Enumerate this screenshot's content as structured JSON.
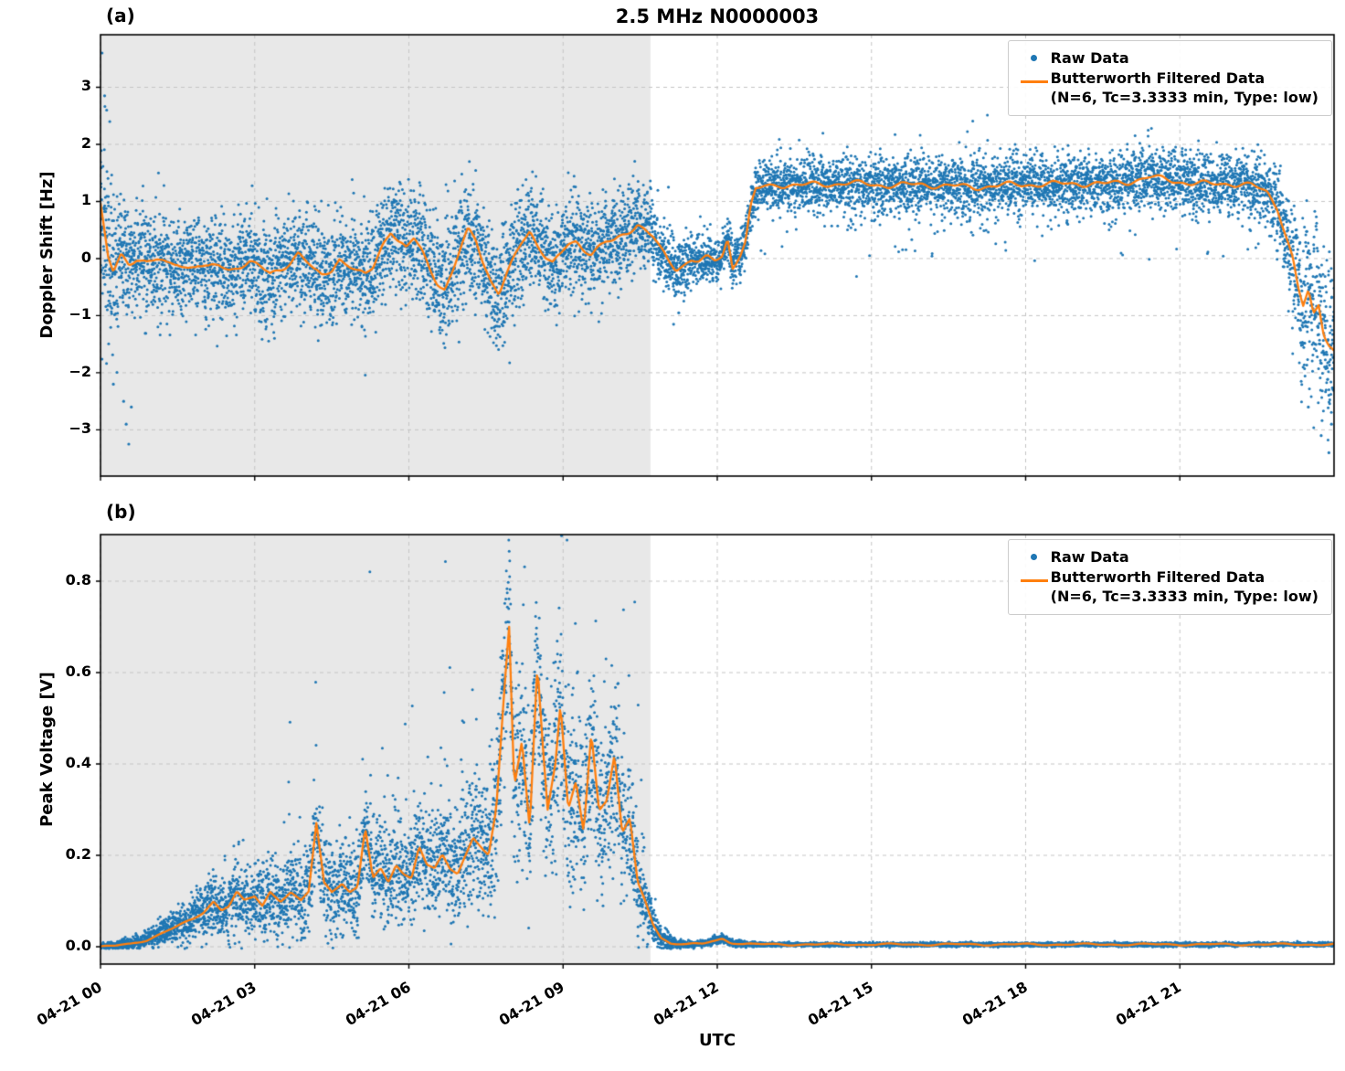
{
  "figure": {
    "title": "2.5 MHz N0000003",
    "xlabel": "UTC",
    "panel_a_label": "(a)",
    "panel_b_label": "(b)",
    "ylabel_a": "Doppler Shift [Hz]",
    "ylabel_b": "Peak Voltage [V]"
  },
  "legend": {
    "raw_label": "Raw Data",
    "filtered_label": "Butterworth Filtered Data",
    "filtered_params": "(N=6, Tc=3.3333 min, Type: low)"
  },
  "colors": {
    "raw": "#1f77b4",
    "filtered": "#ff7f0e",
    "shade": "#e8e8e8",
    "grid": "#c4c4c4",
    "spine": "#000000"
  },
  "chart_data": [
    {
      "panel": "a",
      "type": "scatter",
      "ylabel": "Doppler Shift [Hz]",
      "xlim": [
        0,
        24
      ],
      "ylim": [
        -3.81,
        3.92
      ],
      "xticks": [
        0,
        3,
        6,
        9,
        12,
        15,
        18,
        21
      ],
      "yticks": [
        -3,
        -2,
        -1,
        0,
        1,
        2,
        3
      ],
      "ytick_labels": [
        "−3",
        "−2",
        "−1",
        "0",
        "1",
        "2",
        "3"
      ],
      "shade_hours": [
        0,
        10.7
      ],
      "grid": "dashed",
      "legend_position": "upper right",
      "seed": 1337,
      "n_points": 9500,
      "line_width": 2.3,
      "line_wobble": [
        0.04,
        6.5
      ],
      "filtered_line": [
        [
          0,
          0.95
        ],
        [
          0.07,
          0.5
        ],
        [
          0.15,
          0
        ],
        [
          0.25,
          -0.25
        ],
        [
          0.4,
          0.05
        ],
        [
          0.55,
          -0.1
        ],
        [
          0.7,
          0.02
        ],
        [
          0.9,
          -0.05
        ],
        [
          1.1,
          -0.02
        ],
        [
          1.3,
          -0.12
        ],
        [
          1.5,
          -0.08
        ],
        [
          1.7,
          -0.15
        ],
        [
          1.9,
          -0.1
        ],
        [
          2.1,
          -0.18
        ],
        [
          2.3,
          -0.12
        ],
        [
          2.5,
          -0.2
        ],
        [
          2.7,
          -0.12
        ],
        [
          2.9,
          -0.06
        ],
        [
          3.1,
          -0.15
        ],
        [
          3.3,
          -0.28
        ],
        [
          3.5,
          -0.18
        ],
        [
          3.7,
          -0.05
        ],
        [
          3.85,
          0.1
        ],
        [
          4,
          -0.05
        ],
        [
          4.15,
          -0.22
        ],
        [
          4.3,
          -0.3
        ],
        [
          4.5,
          -0.18
        ],
        [
          4.65,
          0
        ],
        [
          4.8,
          -0.1
        ],
        [
          5,
          -0.25
        ],
        [
          5.15,
          -0.3
        ],
        [
          5.3,
          -0.15
        ],
        [
          5.5,
          0.28
        ],
        [
          5.65,
          0.5
        ],
        [
          5.8,
          0.3
        ],
        [
          5.95,
          0.15
        ],
        [
          6.1,
          0.35
        ],
        [
          6.25,
          0.15
        ],
        [
          6.4,
          -0.15
        ],
        [
          6.55,
          -0.4
        ],
        [
          6.7,
          -0.55
        ],
        [
          6.85,
          -0.25
        ],
        [
          7,
          0.15
        ],
        [
          7.15,
          0.5
        ],
        [
          7.3,
          0.35
        ],
        [
          7.45,
          -0.05
        ],
        [
          7.6,
          -0.4
        ],
        [
          7.75,
          -0.62
        ],
        [
          7.9,
          -0.3
        ],
        [
          8.05,
          0
        ],
        [
          8.2,
          0.3
        ],
        [
          8.35,
          0.5
        ],
        [
          8.5,
          0.25
        ],
        [
          8.65,
          0.05
        ],
        [
          8.8,
          -0.1
        ],
        [
          8.95,
          0.05
        ],
        [
          9.1,
          0.25
        ],
        [
          9.25,
          0.3
        ],
        [
          9.4,
          0.18
        ],
        [
          9.55,
          0.1
        ],
        [
          9.7,
          0.2
        ],
        [
          9.85,
          0.28
        ],
        [
          10,
          0.3
        ],
        [
          10.15,
          0.4
        ],
        [
          10.3,
          0.5
        ],
        [
          10.45,
          0.62
        ],
        [
          10.6,
          0.5
        ],
        [
          10.75,
          0.38
        ],
        [
          10.9,
          0.15
        ],
        [
          11.05,
          -0.05
        ],
        [
          11.2,
          -0.18
        ],
        [
          11.35,
          -0.1
        ],
        [
          11.5,
          0
        ],
        [
          11.65,
          -0.05
        ],
        [
          11.8,
          0
        ],
        [
          11.95,
          -0.05
        ],
        [
          12.1,
          0.05
        ],
        [
          12.2,
          0.35
        ],
        [
          12.3,
          -0.15
        ],
        [
          12.45,
          0.1
        ],
        [
          12.55,
          0.3
        ],
        [
          12.65,
          0.9
        ],
        [
          12.75,
          1.2
        ],
        [
          12.9,
          1.25
        ],
        [
          13.2,
          1.3
        ],
        [
          13.6,
          1.28
        ],
        [
          14,
          1.3
        ],
        [
          14.5,
          1.32
        ],
        [
          15,
          1.3
        ],
        [
          15.5,
          1.28
        ],
        [
          16,
          1.3
        ],
        [
          16.5,
          1.27
        ],
        [
          17,
          1.25
        ],
        [
          17.5,
          1.28
        ],
        [
          18,
          1.3
        ],
        [
          18.5,
          1.3
        ],
        [
          19,
          1.32
        ],
        [
          19.5,
          1.3
        ],
        [
          20,
          1.35
        ],
        [
          20.4,
          1.42
        ],
        [
          20.8,
          1.38
        ],
        [
          21.2,
          1.32
        ],
        [
          21.6,
          1.3
        ],
        [
          22,
          1.32
        ],
        [
          22.4,
          1.28
        ],
        [
          22.7,
          1.15
        ],
        [
          22.9,
          0.9
        ],
        [
          23.05,
          0.45
        ],
        [
          23.2,
          0
        ],
        [
          23.3,
          -0.5
        ],
        [
          23.4,
          -0.85
        ],
        [
          23.5,
          -0.6
        ],
        [
          23.6,
          -1
        ],
        [
          23.7,
          -0.8
        ],
        [
          23.8,
          -1.3
        ],
        [
          23.9,
          -1.5
        ],
        [
          24,
          -1.6
        ]
      ],
      "noise_profile": [
        [
          0,
          1.1
        ],
        [
          0.2,
          0.8
        ],
        [
          0.4,
          0.55
        ],
        [
          0.7,
          0.45
        ],
        [
          1.5,
          0.42
        ],
        [
          3,
          0.45
        ],
        [
          5,
          0.45
        ],
        [
          6,
          0.5
        ],
        [
          7,
          0.55
        ],
        [
          8,
          0.5
        ],
        [
          9,
          0.45
        ],
        [
          10,
          0.4
        ],
        [
          10.6,
          0.35
        ],
        [
          11,
          0.3
        ],
        [
          11.6,
          0.22
        ],
        [
          12,
          0.18
        ],
        [
          12.4,
          0.25
        ],
        [
          12.7,
          0.2
        ],
        [
          13,
          0.22
        ],
        [
          15,
          0.24
        ],
        [
          18,
          0.24
        ],
        [
          21,
          0.26
        ],
        [
          22.5,
          0.28
        ],
        [
          22.9,
          0.35
        ],
        [
          23.2,
          0.55
        ],
        [
          23.6,
          0.75
        ],
        [
          24,
          0.85
        ]
      ],
      "outlier_points": [
        [
          0.03,
          3.6
        ],
        [
          0.08,
          2.85
        ],
        [
          0.12,
          2.6
        ],
        [
          0.18,
          2.4
        ],
        [
          0.25,
          -2.2
        ],
        [
          0.45,
          -2.5
        ],
        [
          0.5,
          -2.9
        ],
        [
          0.55,
          -3.25
        ],
        [
          0.6,
          -2.6
        ],
        [
          11.05,
          1.25
        ],
        [
          11.15,
          -1.15
        ],
        [
          11.25,
          -0.95
        ],
        [
          23.5,
          -2.6
        ],
        [
          23.75,
          -3.1
        ],
        [
          23.9,
          -3.4
        ],
        [
          23.95,
          -2.9
        ]
      ],
      "band_outliers": [
        {
          "range": [
            12.8,
            22.6
          ],
          "prob": 0.025,
          "offset": [
            -1.1,
            -0.3
          ]
        },
        {
          "range": [
            12.8,
            22.6
          ],
          "prob": 0.008,
          "offset": [
            0.3,
            0.8
          ]
        }
      ]
    },
    {
      "panel": "b",
      "type": "scatter",
      "ylabel": "Peak Voltage [V]",
      "xlim": [
        0,
        24
      ],
      "ylim": [
        -0.038,
        0.902
      ],
      "xticks": [
        0,
        3,
        6,
        9,
        12,
        15,
        18,
        21
      ],
      "xtick_labels": [
        "04-21 00",
        "04-21 03",
        "04-21 06",
        "04-21 09",
        "04-21 12",
        "04-21 15",
        "04-21 18",
        "04-21 21"
      ],
      "yticks": [
        0,
        0.2,
        0.4,
        0.6,
        0.8
      ],
      "ytick_labels": [
        "0.0",
        "0.2",
        "0.4",
        "0.6",
        "0.8"
      ],
      "shade_hours": [
        0,
        10.7
      ],
      "grid": "dashed",
      "legend_position": "upper right",
      "seed": 7001,
      "n_points": 9500,
      "line_width": 2.3,
      "line_wobble": [
        0.0015,
        5
      ],
      "ymin_clamp": -0.004,
      "filtered_line": [
        [
          0,
          0
        ],
        [
          0.3,
          0.002
        ],
        [
          0.6,
          0.006
        ],
        [
          0.9,
          0.015
        ],
        [
          1.2,
          0.03
        ],
        [
          1.5,
          0.045
        ],
        [
          1.8,
          0.06
        ],
        [
          2,
          0.075
        ],
        [
          2.2,
          0.1
        ],
        [
          2.35,
          0.08
        ],
        [
          2.5,
          0.09
        ],
        [
          2.65,
          0.12
        ],
        [
          2.8,
          0.1
        ],
        [
          3,
          0.11
        ],
        [
          3.15,
          0.09
        ],
        [
          3.3,
          0.12
        ],
        [
          3.5,
          0.1
        ],
        [
          3.7,
          0.12
        ],
        [
          3.9,
          0.1
        ],
        [
          4.05,
          0.12
        ],
        [
          4.2,
          0.27
        ],
        [
          4.35,
          0.14
        ],
        [
          4.5,
          0.12
        ],
        [
          4.7,
          0.14
        ],
        [
          4.85,
          0.12
        ],
        [
          5,
          0.13
        ],
        [
          5.15,
          0.26
        ],
        [
          5.3,
          0.15
        ],
        [
          5.45,
          0.17
        ],
        [
          5.6,
          0.14
        ],
        [
          5.75,
          0.18
        ],
        [
          5.9,
          0.16
        ],
        [
          6.05,
          0.15
        ],
        [
          6.2,
          0.22
        ],
        [
          6.35,
          0.18
        ],
        [
          6.5,
          0.17
        ],
        [
          6.65,
          0.2
        ],
        [
          6.8,
          0.17
        ],
        [
          6.95,
          0.16
        ],
        [
          7.1,
          0.2
        ],
        [
          7.25,
          0.24
        ],
        [
          7.4,
          0.22
        ],
        [
          7.55,
          0.2
        ],
        [
          7.7,
          0.3
        ],
        [
          7.85,
          0.55
        ],
        [
          7.95,
          0.7
        ],
        [
          8.05,
          0.35
        ],
        [
          8.2,
          0.45
        ],
        [
          8.35,
          0.26
        ],
        [
          8.5,
          0.62
        ],
        [
          8.6,
          0.45
        ],
        [
          8.7,
          0.3
        ],
        [
          8.85,
          0.4
        ],
        [
          8.95,
          0.53
        ],
        [
          9.1,
          0.3
        ],
        [
          9.25,
          0.36
        ],
        [
          9.4,
          0.25
        ],
        [
          9.55,
          0.47
        ],
        [
          9.7,
          0.3
        ],
        [
          9.85,
          0.32
        ],
        [
          10,
          0.42
        ],
        [
          10.15,
          0.25
        ],
        [
          10.3,
          0.28
        ],
        [
          10.45,
          0.14
        ],
        [
          10.6,
          0.1
        ],
        [
          10.75,
          0.05
        ],
        [
          10.9,
          0.02
        ],
        [
          11.1,
          0.008
        ],
        [
          11.4,
          0.005
        ],
        [
          11.7,
          0.006
        ],
        [
          11.95,
          0.013
        ],
        [
          12.1,
          0.018
        ],
        [
          12.25,
          0.01
        ],
        [
          12.5,
          0.006
        ],
        [
          13,
          0.005
        ],
        [
          14,
          0.005
        ],
        [
          16,
          0.005
        ],
        [
          18,
          0.005
        ],
        [
          20,
          0.005
        ],
        [
          22,
          0.005
        ],
        [
          24,
          0.005
        ]
      ],
      "noise_profile": [
        [
          0,
          0.003
        ],
        [
          0.8,
          0.008
        ],
        [
          1.5,
          0.02
        ],
        [
          2,
          0.03
        ],
        [
          2.5,
          0.035
        ],
        [
          3,
          0.04
        ],
        [
          3.5,
          0.045
        ],
        [
          4,
          0.05
        ],
        [
          5,
          0.05
        ],
        [
          6,
          0.055
        ],
        [
          6.5,
          0.06
        ],
        [
          7,
          0.065
        ],
        [
          7.5,
          0.08
        ],
        [
          8,
          0.1
        ],
        [
          8.5,
          0.1
        ],
        [
          9,
          0.11
        ],
        [
          9.5,
          0.1
        ],
        [
          10,
          0.09
        ],
        [
          10.4,
          0.07
        ],
        [
          10.7,
          0.03
        ],
        [
          10.9,
          0.012
        ],
        [
          11.2,
          0.005
        ],
        [
          11.6,
          0.003
        ],
        [
          12,
          0.005
        ],
        [
          12.3,
          0.004
        ],
        [
          13,
          0.002
        ],
        [
          24,
          0.002
        ]
      ],
      "pos_spikes": {
        "range": [
          3.5,
          10.6
        ],
        "prob": 0.05,
        "scale": 1.1
      }
    }
  ]
}
